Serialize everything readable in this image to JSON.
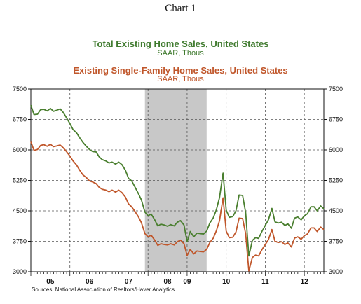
{
  "header": {
    "chart_number": "Chart 1"
  },
  "source": "Sources:  National Association of Realtors/Haver Analytics",
  "chart_data": {
    "type": "line",
    "titles": [
      {
        "title": "Total Existing Home Sales, United States",
        "subtitle": "SAAR, Thous"
      },
      {
        "title": "Existing Single-Family Home Sales, United States",
        "subtitle": "SAAR, Thous"
      }
    ],
    "ylim": [
      3000,
      7500
    ],
    "yticks": [
      3000,
      3750,
      4500,
      5250,
      6000,
      6750,
      7500
    ],
    "ytick_labels": [
      "3000",
      "3750",
      "4500",
      "5250",
      "6000",
      "6750",
      "7500"
    ],
    "xlim": [
      2005.0,
      2012.5
    ],
    "xticks": [
      {
        "label": "05",
        "at": 2005.5
      },
      {
        "label": "06",
        "at": 2006.5
      },
      {
        "label": "07",
        "at": 2007.5
      },
      {
        "label": "08",
        "at": 2008.5
      },
      {
        "label": "09",
        "at": 2009.0
      },
      {
        "label": "10",
        "at": 2010.0
      },
      {
        "label": "11",
        "at": 2011.0
      },
      {
        "label": "12",
        "at": 2012.0
      }
    ],
    "vgrid": [
      2006.0,
      2007.0,
      2008.0,
      2009.0,
      2010.0,
      2011.0,
      2012.0
    ],
    "recession_shading": [
      2007.92,
      2009.5
    ],
    "grid": true,
    "series": [
      {
        "color": "#4a7f2f",
        "points": [
          [
            2005.0,
            7100
          ],
          [
            2005.08,
            6870
          ],
          [
            2005.17,
            6880
          ],
          [
            2005.25,
            6990
          ],
          [
            2005.33,
            7000
          ],
          [
            2005.42,
            6960
          ],
          [
            2005.5,
            7020
          ],
          [
            2005.58,
            6950
          ],
          [
            2005.67,
            6980
          ],
          [
            2005.75,
            7010
          ],
          [
            2005.83,
            6920
          ],
          [
            2005.92,
            6780
          ],
          [
            2006.0,
            6650
          ],
          [
            2006.08,
            6500
          ],
          [
            2006.17,
            6420
          ],
          [
            2006.25,
            6300
          ],
          [
            2006.33,
            6190
          ],
          [
            2006.42,
            6090
          ],
          [
            2006.5,
            6010
          ],
          [
            2006.58,
            5960
          ],
          [
            2006.67,
            5950
          ],
          [
            2006.75,
            5830
          ],
          [
            2006.83,
            5760
          ],
          [
            2006.92,
            5730
          ],
          [
            2007.0,
            5680
          ],
          [
            2007.08,
            5700
          ],
          [
            2007.17,
            5650
          ],
          [
            2007.25,
            5700
          ],
          [
            2007.33,
            5640
          ],
          [
            2007.42,
            5500
          ],
          [
            2007.5,
            5300
          ],
          [
            2007.58,
            5240
          ],
          [
            2007.67,
            5080
          ],
          [
            2007.75,
            4930
          ],
          [
            2007.83,
            4770
          ],
          [
            2007.92,
            4470
          ],
          [
            2008.0,
            4380
          ],
          [
            2008.08,
            4420
          ],
          [
            2008.17,
            4280
          ],
          [
            2008.25,
            4130
          ],
          [
            2008.33,
            4170
          ],
          [
            2008.42,
            4150
          ],
          [
            2008.5,
            4120
          ],
          [
            2008.58,
            4160
          ],
          [
            2008.67,
            4130
          ],
          [
            2008.75,
            4220
          ],
          [
            2008.83,
            4260
          ],
          [
            2008.92,
            4150
          ],
          [
            2009.0,
            3740
          ],
          [
            2009.08,
            3990
          ],
          [
            2009.17,
            3860
          ],
          [
            2009.25,
            3950
          ],
          [
            2009.33,
            3940
          ],
          [
            2009.42,
            3930
          ],
          [
            2009.5,
            4000
          ],
          [
            2009.58,
            4200
          ],
          [
            2009.67,
            4330
          ],
          [
            2009.75,
            4530
          ],
          [
            2009.83,
            4830
          ],
          [
            2009.92,
            5430
          ],
          [
            2010.0,
            4520
          ],
          [
            2010.08,
            4340
          ],
          [
            2010.17,
            4360
          ],
          [
            2010.25,
            4500
          ],
          [
            2010.33,
            4890
          ],
          [
            2010.42,
            4880
          ],
          [
            2010.5,
            4450
          ],
          [
            2010.58,
            3390
          ],
          [
            2010.67,
            3770
          ],
          [
            2010.75,
            3840
          ],
          [
            2010.83,
            3820
          ],
          [
            2010.92,
            4000
          ],
          [
            2011.0,
            4140
          ],
          [
            2011.08,
            4280
          ],
          [
            2011.17,
            4560
          ],
          [
            2011.25,
            4230
          ],
          [
            2011.33,
            4200
          ],
          [
            2011.42,
            4220
          ],
          [
            2011.5,
            4140
          ],
          [
            2011.58,
            4180
          ],
          [
            2011.67,
            4070
          ],
          [
            2011.75,
            4320
          ],
          [
            2011.83,
            4350
          ],
          [
            2011.92,
            4280
          ],
          [
            2012.0,
            4380
          ],
          [
            2012.08,
            4430
          ],
          [
            2012.17,
            4600
          ],
          [
            2012.25,
            4600
          ],
          [
            2012.33,
            4500
          ],
          [
            2012.42,
            4620
          ],
          [
            2012.5,
            4550
          ]
        ]
      },
      {
        "color": "#c0562a",
        "points": [
          [
            2005.0,
            6200
          ],
          [
            2005.08,
            5990
          ],
          [
            2005.17,
            6010
          ],
          [
            2005.25,
            6110
          ],
          [
            2005.33,
            6130
          ],
          [
            2005.42,
            6090
          ],
          [
            2005.5,
            6140
          ],
          [
            2005.58,
            6080
          ],
          [
            2005.67,
            6100
          ],
          [
            2005.75,
            6120
          ],
          [
            2005.83,
            6050
          ],
          [
            2005.92,
            5950
          ],
          [
            2006.0,
            5850
          ],
          [
            2006.08,
            5730
          ],
          [
            2006.17,
            5630
          ],
          [
            2006.25,
            5500
          ],
          [
            2006.33,
            5390
          ],
          [
            2006.42,
            5320
          ],
          [
            2006.5,
            5240
          ],
          [
            2006.58,
            5210
          ],
          [
            2006.67,
            5170
          ],
          [
            2006.75,
            5080
          ],
          [
            2006.83,
            5030
          ],
          [
            2006.92,
            5010
          ],
          [
            2007.0,
            4970
          ],
          [
            2007.08,
            5010
          ],
          [
            2007.17,
            4960
          ],
          [
            2007.25,
            5010
          ],
          [
            2007.33,
            4950
          ],
          [
            2007.42,
            4840
          ],
          [
            2007.5,
            4670
          ],
          [
            2007.58,
            4600
          ],
          [
            2007.67,
            4480
          ],
          [
            2007.75,
            4360
          ],
          [
            2007.83,
            4210
          ],
          [
            2007.92,
            3940
          ],
          [
            2008.0,
            3860
          ],
          [
            2008.08,
            3900
          ],
          [
            2008.17,
            3780
          ],
          [
            2008.25,
            3650
          ],
          [
            2008.33,
            3690
          ],
          [
            2008.42,
            3670
          ],
          [
            2008.5,
            3660
          ],
          [
            2008.58,
            3690
          ],
          [
            2008.67,
            3660
          ],
          [
            2008.75,
            3740
          ],
          [
            2008.83,
            3780
          ],
          [
            2008.92,
            3690
          ],
          [
            2009.0,
            3400
          ],
          [
            2009.08,
            3550
          ],
          [
            2009.17,
            3440
          ],
          [
            2009.25,
            3510
          ],
          [
            2009.33,
            3500
          ],
          [
            2009.42,
            3490
          ],
          [
            2009.5,
            3550
          ],
          [
            2009.58,
            3720
          ],
          [
            2009.67,
            3830
          ],
          [
            2009.75,
            4010
          ],
          [
            2009.83,
            4260
          ],
          [
            2009.92,
            4820
          ],
          [
            2010.0,
            4000
          ],
          [
            2010.08,
            3840
          ],
          [
            2010.17,
            3850
          ],
          [
            2010.25,
            3980
          ],
          [
            2010.33,
            4320
          ],
          [
            2010.42,
            4310
          ],
          [
            2010.5,
            3930
          ],
          [
            2010.58,
            3020
          ],
          [
            2010.67,
            3350
          ],
          [
            2010.75,
            3410
          ],
          [
            2010.83,
            3390
          ],
          [
            2010.92,
            3550
          ],
          [
            2011.0,
            3670
          ],
          [
            2011.08,
            3790
          ],
          [
            2011.17,
            4040
          ],
          [
            2011.25,
            3750
          ],
          [
            2011.33,
            3720
          ],
          [
            2011.42,
            3740
          ],
          [
            2011.5,
            3670
          ],
          [
            2011.58,
            3710
          ],
          [
            2011.67,
            3610
          ],
          [
            2011.75,
            3830
          ],
          [
            2011.83,
            3860
          ],
          [
            2011.92,
            3800
          ],
          [
            2012.0,
            3890
          ],
          [
            2012.08,
            3930
          ],
          [
            2012.17,
            4080
          ],
          [
            2012.25,
            4080
          ],
          [
            2012.33,
            3990
          ],
          [
            2012.42,
            4100
          ],
          [
            2012.5,
            4040
          ]
        ]
      }
    ]
  }
}
